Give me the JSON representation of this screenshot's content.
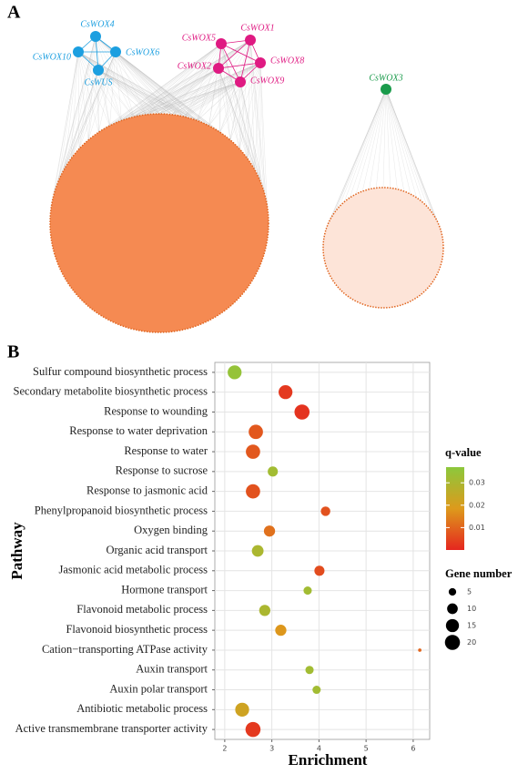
{
  "network": {
    "label": "A",
    "clusters": [
      {
        "color": "#1c9fe0",
        "nodes": [
          "CsWOX4",
          "CsWOX6",
          "CsWUS",
          "CsWOX10"
        ]
      },
      {
        "color": "#df1a82",
        "nodes": [
          "CsWOX5",
          "CsWOX1",
          "CsWOX8",
          "CsWOX9",
          "CsWOX2"
        ]
      },
      {
        "color": "#1a9b4b",
        "nodes": [
          "CsWOX3"
        ]
      }
    ]
  },
  "chart_data": {
    "type": "bubble",
    "label": "B",
    "x_label": "Enrichment",
    "y_label": "Pathway",
    "categories": [
      "Sulfur compound biosynthetic process",
      "Secondary metabolite biosynthetic process",
      "Response to wounding",
      "Response to water deprivation",
      "Response to water",
      "Response to sucrose",
      "Response to jasmonic acid",
      "Phenylpropanoid biosynthetic process",
      "Oxygen binding",
      "Organic acid transport",
      "Jasmonic acid metabolic process",
      "Hormone transport",
      "Flavonoid metabolic process",
      "Flavonoid biosynthetic process",
      "Cation−transporting ATPase activity",
      "Auxin transport",
      "Auxin polar transport",
      "Antibiotic metabolic process",
      "Active transmembrane transporter activity"
    ],
    "values": [
      2.21,
      3.29,
      3.64,
      2.66,
      2.6,
      3.02,
      2.6,
      4.14,
      2.95,
      2.7,
      4.01,
      3.76,
      2.85,
      3.19,
      6.14,
      3.8,
      3.95,
      2.37,
      2.6
    ],
    "gene_number": [
      17,
      17,
      20,
      18,
      18,
      9,
      18,
      8,
      11,
      12,
      9,
      6,
      11,
      11,
      1,
      6,
      6,
      17,
      20
    ],
    "q_value": [
      0.035,
      0.003,
      0.002,
      0.008,
      0.008,
      0.032,
      0.007,
      0.007,
      0.012,
      0.03,
      0.006,
      0.032,
      0.03,
      0.018,
      0.01,
      0.032,
      0.032,
      0.022,
      0.003
    ],
    "xlim": [
      1.79,
      6.35
    ],
    "xticks": [
      2,
      3,
      4,
      5,
      6
    ],
    "grid": true,
    "color_title": "q-value",
    "color_lim": [
      0,
      0.037
    ],
    "color_ticks": [
      0.01,
      0.02,
      0.03
    ],
    "colors": [
      "#e5261f",
      "#dd9a1c",
      "#8cc83c"
    ],
    "size_title": "Gene number",
    "size_ticks": [
      5,
      10,
      15,
      20
    ]
  }
}
